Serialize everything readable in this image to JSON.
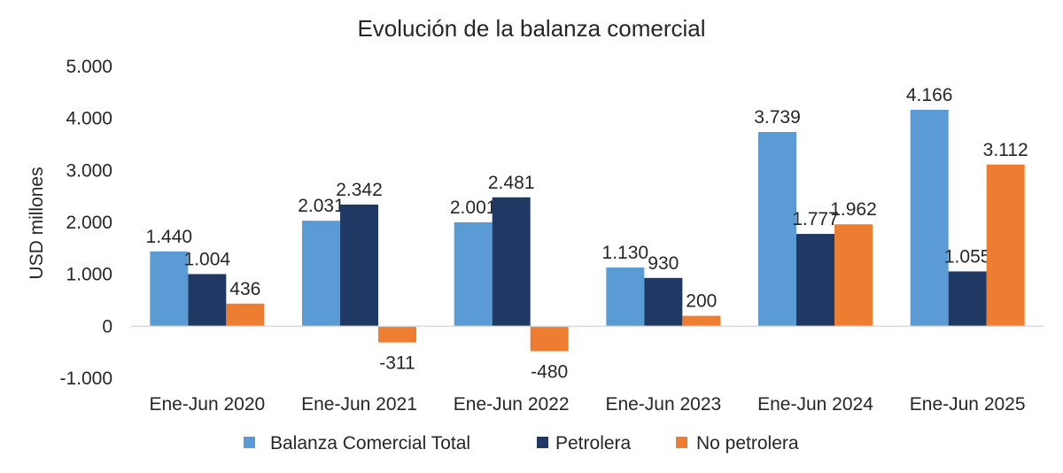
{
  "chart_data": {
    "type": "bar",
    "title": "Evolución de la balanza comercial",
    "xlabel": "",
    "ylabel": "USD millones",
    "ylim": [
      -1000,
      5000
    ],
    "yticks": [
      -1000,
      0,
      1000,
      2000,
      3000,
      4000,
      5000
    ],
    "ytick_labels": [
      "-1.000",
      "0",
      "1.000",
      "2.000",
      "3.000",
      "4.000",
      "5.000"
    ],
    "grid": false,
    "legend_position": "bottom",
    "categories": [
      "Ene-Jun 2020",
      "Ene-Jun 2021",
      "Ene-Jun 2022",
      "Ene-Jun 2023",
      "Ene-Jun 2024",
      "Ene-Jun 2025"
    ],
    "series": [
      {
        "name": "Balanza Comercial Total",
        "color": "#5B9BD5",
        "values": [
          1440,
          2031,
          2001,
          1130,
          3739,
          4166
        ],
        "labels": [
          "1.440",
          "2.031",
          "2.001",
          "1.130",
          "3.739",
          "4.166"
        ]
      },
      {
        "name": "Petrolera",
        "color": "#203864",
        "values": [
          1004,
          2342,
          2481,
          930,
          1777,
          1055
        ],
        "labels": [
          "1.004",
          "2.342",
          "2.481",
          "930",
          "1.777",
          "1.055"
        ]
      },
      {
        "name": "No petrolera",
        "color": "#ED7D31",
        "values": [
          436,
          -311,
          -480,
          200,
          1962,
          3112
        ],
        "labels": [
          "436",
          "-311",
          "-480",
          "200",
          "1.962",
          "3.112"
        ]
      }
    ]
  }
}
